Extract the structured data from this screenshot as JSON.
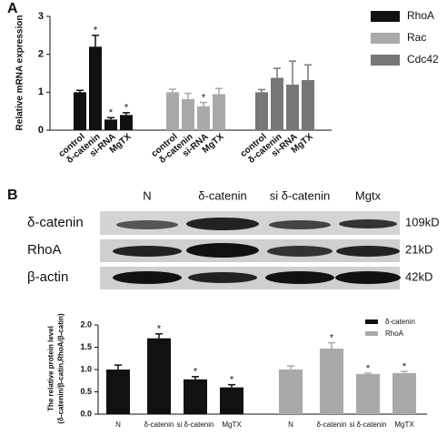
{
  "panels": [
    "A",
    "B"
  ],
  "blot": {
    "lanes": [
      "N",
      "δ-catenin",
      "si δ-catenin",
      "Mgtx"
    ],
    "rows": [
      {
        "label": "δ-catenin",
        "size": "109kD"
      },
      {
        "label": "RhoA",
        "size": "21kD"
      },
      {
        "label": "β-actin",
        "size": "42kD"
      }
    ]
  },
  "chart_data": [
    {
      "type": "bar",
      "ylabel": "Relative mRNA expression",
      "categories": [
        "control",
        "δ-catenin",
        "si-RNA",
        "MgTX"
      ],
      "ylim": [
        0,
        3
      ],
      "yticks": [
        0,
        1,
        2,
        3
      ],
      "series": [
        {
          "name": "RhoA",
          "color": "#111111",
          "values": [
            1.0,
            2.2,
            0.28,
            0.4
          ],
          "errors": [
            0.05,
            0.3,
            0.05,
            0.06
          ],
          "markers": [
            null,
            "*",
            "*",
            "*"
          ]
        },
        {
          "name": "Rac",
          "color": "#a9a9a9",
          "values": [
            1.0,
            0.82,
            0.63,
            0.95
          ],
          "errors": [
            0.08,
            0.15,
            0.1,
            0.15
          ],
          "markers": [
            null,
            null,
            "*",
            null
          ]
        },
        {
          "name": "Cdc42",
          "color": "#777777",
          "values": [
            1.0,
            1.38,
            1.2,
            1.32
          ],
          "errors": [
            0.07,
            0.25,
            0.62,
            0.4
          ],
          "markers": [
            null,
            null,
            null,
            null
          ]
        }
      ]
    },
    {
      "type": "bar",
      "ylabel": [
        "The relative protein level",
        "(δ-catenin/β-catin,RhoA/β-catin)"
      ],
      "categories": [
        "N",
        "δ-catenin",
        "si δ-catenin",
        "MgTX"
      ],
      "ylim": [
        0,
        2
      ],
      "yticks": [
        {
          "value": 0,
          "label": "0.0"
        },
        0.5,
        {
          "value": 1,
          "label": "1.0"
        },
        1.5,
        {
          "value": 2,
          "label": "2.0"
        }
      ],
      "series": [
        {
          "name": "δ-catenin",
          "color": "#111111",
          "values": [
            1.0,
            1.7,
            0.78,
            0.6
          ],
          "errors": [
            0.1,
            0.1,
            0.06,
            0.06
          ],
          "markers": [
            null,
            "*",
            "*",
            "*"
          ]
        },
        {
          "name": "RhoA",
          "color": "#a9a9a9",
          "values": [
            1.0,
            1.47,
            0.9,
            0.92
          ],
          "errors": [
            0.08,
            0.13,
            0.02,
            0.04
          ],
          "markers": [
            null,
            "*",
            "*",
            "*"
          ]
        }
      ]
    }
  ]
}
